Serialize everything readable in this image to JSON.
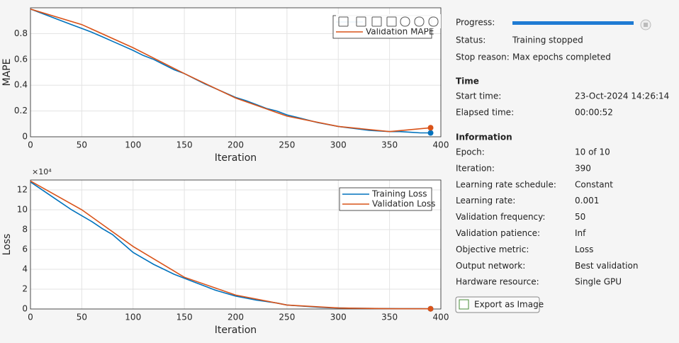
{
  "chart_data": [
    {
      "type": "line",
      "xlabel": "Iteration",
      "ylabel": "MAPE",
      "xlim": [
        0,
        400
      ],
      "xticks": [
        0,
        50,
        100,
        150,
        200,
        250,
        300,
        350,
        400
      ],
      "ylim": [
        0,
        1
      ],
      "yticks": [
        0,
        0.2,
        0.4,
        0.6,
        0.8
      ],
      "grid": true,
      "legend": "northeast",
      "end_marker": true,
      "series": [
        {
          "color": "#0072BD",
          "x": [
            0,
            10,
            20,
            30,
            40,
            50,
            60,
            70,
            80,
            90,
            100,
            110,
            120,
            130,
            140,
            150,
            160,
            170,
            180,
            190,
            200,
            210,
            220,
            230,
            240,
            250,
            260,
            270,
            280,
            290,
            300,
            310,
            320,
            330,
            340,
            350,
            360,
            370,
            380,
            390
          ],
          "values": [
            0.99,
            0.96,
            0.93,
            0.9,
            0.87,
            0.84,
            0.81,
            0.775,
            0.74,
            0.705,
            0.67,
            0.63,
            0.6,
            0.56,
            0.52,
            0.49,
            0.45,
            0.41,
            0.375,
            0.34,
            0.305,
            0.28,
            0.25,
            0.22,
            0.2,
            0.17,
            0.15,
            0.13,
            0.11,
            0.095,
            0.08,
            0.07,
            0.06,
            0.05,
            0.045,
            0.04,
            0.04,
            0.035,
            0.03,
            0.03
          ]
        },
        {
          "name": "Validation MAPE",
          "color": "#D95319",
          "x": [
            0,
            50,
            100,
            150,
            200,
            250,
            300,
            350,
            390
          ],
          "values": [
            0.99,
            0.87,
            0.69,
            0.49,
            0.3,
            0.16,
            0.08,
            0.04,
            0.07
          ]
        }
      ]
    },
    {
      "type": "line",
      "xlabel": "Iteration",
      "ylabel": "Loss",
      "exponent_label": "×10⁴",
      "xlim": [
        0,
        400
      ],
      "xticks": [
        0,
        50,
        100,
        150,
        200,
        250,
        300,
        350,
        400
      ],
      "ylim": [
        0,
        130000
      ],
      "yticks": [
        {
          "value": 0,
          "label": "0"
        },
        {
          "value": 20000,
          "label": "2"
        },
        {
          "value": 40000,
          "label": "4"
        },
        {
          "value": 60000,
          "label": "6"
        },
        {
          "value": 80000,
          "label": "8"
        },
        {
          "value": 100000,
          "label": "10"
        },
        {
          "value": 120000,
          "label": "12"
        }
      ],
      "grid": true,
      "legend": "northeast",
      "end_marker": true,
      "series": [
        {
          "name": "Training Loss",
          "color": "#0072BD",
          "x": [
            0,
            10,
            20,
            30,
            40,
            50,
            60,
            70,
            80,
            90,
            100,
            110,
            120,
            130,
            140,
            150,
            160,
            170,
            180,
            190,
            200,
            210,
            220,
            230,
            240,
            250,
            260,
            270,
            280,
            290,
            300,
            320,
            340,
            360,
            380,
            390
          ],
          "values": [
            128000,
            121000,
            114000,
            107000,
            100000,
            94000,
            88000,
            81000,
            75000,
            66000,
            57000,
            51000,
            45000,
            40000,
            35000,
            31000,
            27000,
            23000,
            19000,
            16000,
            13000,
            11000,
            9000,
            7500,
            6000,
            4000,
            3200,
            2500,
            1800,
            1300,
            1000,
            700,
            500,
            300,
            250,
            200
          ]
        },
        {
          "name": "Validation Loss",
          "color": "#D95319",
          "x": [
            0,
            50,
            100,
            150,
            200,
            250,
            300,
            350,
            390
          ],
          "values": [
            129000,
            100000,
            63000,
            32000,
            14000,
            4000,
            1000,
            300,
            200
          ]
        }
      ]
    }
  ],
  "panel": {
    "progress_label": "Progress:",
    "status_rows": [
      [
        "Status:",
        "Training stopped"
      ],
      [
        "Stop reason:",
        "Max epochs completed"
      ]
    ],
    "sections": [
      {
        "title": "Time",
        "rows": [
          [
            "Start time:",
            "23-Oct-2024 14:26:14"
          ],
          [
            "Elapsed time:",
            "00:00:52"
          ]
        ]
      },
      {
        "title": "Information",
        "rows": [
          [
            "Epoch:",
            "10 of 10"
          ],
          [
            "Iteration:",
            "390"
          ],
          [
            "Learning rate schedule:",
            "Constant"
          ],
          [
            "Learning rate:",
            "0.001"
          ],
          [
            "Validation frequency:",
            "50"
          ],
          [
            "Validation patience:",
            "Inf"
          ],
          [
            "Objective metric:",
            "Loss"
          ],
          [
            "Output network:",
            "Best validation"
          ],
          [
            "Hardware resource:",
            "Single GPU"
          ]
        ]
      }
    ],
    "button": "Export as Image"
  }
}
